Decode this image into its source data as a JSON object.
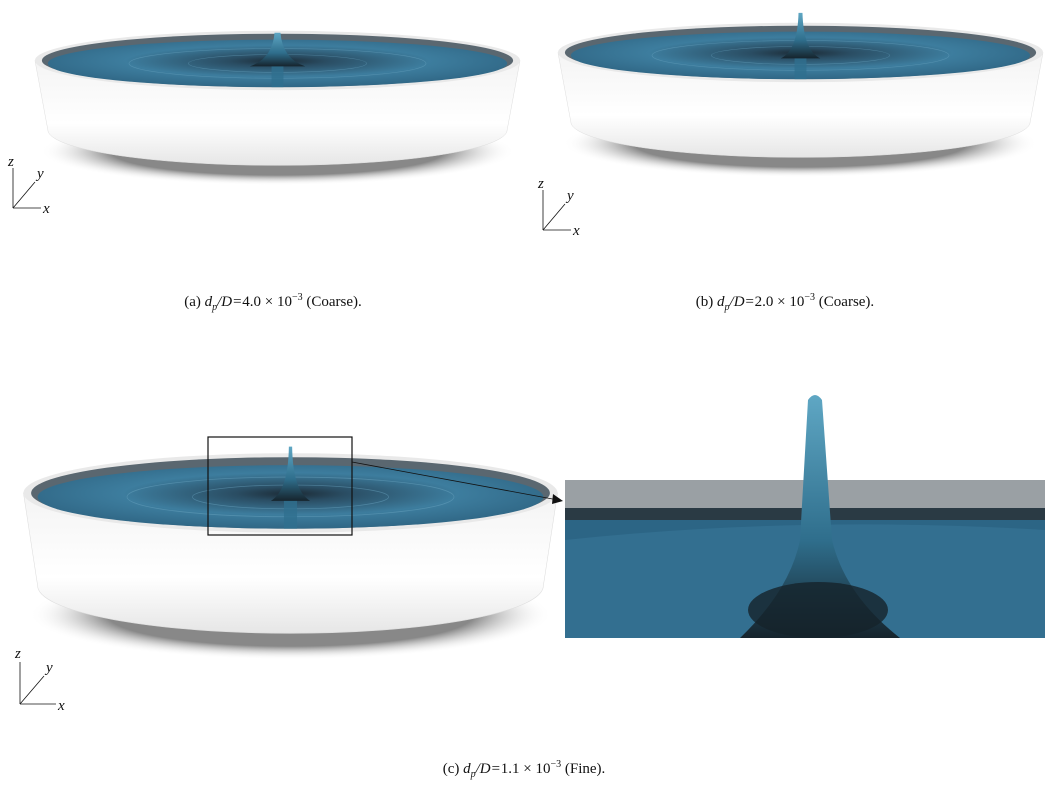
{
  "panels": [
    {
      "caption": {
        "label": "(a)",
        "variable": "d",
        "subscript": "p",
        "ratio": "/D=",
        "mantissa": "4.0 × 10",
        "exponent": "−3",
        "note": "(Coarse)."
      },
      "axes": {
        "z": "z",
        "y": "y",
        "x": "x"
      }
    },
    {
      "caption": {
        "label": "(b)",
        "variable": "d",
        "subscript": "p",
        "ratio": "/D=",
        "mantissa": "2.0 × 10",
        "exponent": "−3",
        "note": "(Coarse)."
      },
      "axes": {
        "z": "z",
        "y": "y",
        "x": "x"
      }
    },
    {
      "caption": {
        "label": "(c)",
        "variable": "d",
        "subscript": "p",
        "ratio": "/D=",
        "mantissa": "1.1 × 10",
        "exponent": "−3",
        "note": "(Fine)."
      },
      "axes": {
        "z": "z",
        "y": "y",
        "x": "x"
      }
    }
  ]
}
